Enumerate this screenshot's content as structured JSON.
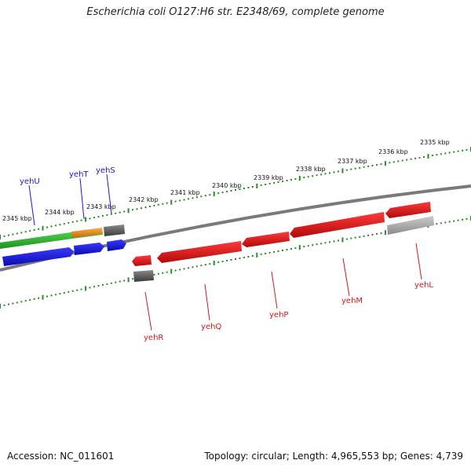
{
  "title": "Escherichia coli O127:H6 str. E2348/69, complete genome",
  "footer": {
    "accession": "Accession: NC_011601",
    "topology": "Topology: circular; Length: 4,965,553 bp; Genes: 4,739"
  },
  "scale_labels": [
    "2345 kbp",
    "2344 kbp",
    "2343 kbp",
    "2342 kbp",
    "2341 kbp",
    "2340 kbp",
    "2339 kbp",
    "2338 kbp",
    "2337 kbp",
    "2336 kbp",
    "2335 kbp"
  ],
  "genes_forward": [
    {
      "label": "yehU",
      "color": "#1a1acc"
    },
    {
      "label": "yehT",
      "color": "#1a1acc"
    },
    {
      "label": "yehS",
      "color": "#1a1acc"
    }
  ],
  "genes_reverse": [
    {
      "label": "yehR",
      "color": "#cc1a1a"
    },
    {
      "label": "yehQ",
      "color": "#cc1a1a"
    },
    {
      "label": "yehP",
      "color": "#cc1a1a"
    },
    {
      "label": "yehM",
      "color": "#cc1a1a"
    },
    {
      "label": "yehL",
      "color": "#cc1a1a"
    }
  ],
  "colors": {
    "forward_cds": "#1a1ae6",
    "reverse_cds": "#e61a1a",
    "forward_gene": "#33bb33",
    "other_feature": "#e8921a",
    "gray_feature": "#666666",
    "backbone": "#777777",
    "ticks": "#2a8a2a"
  }
}
